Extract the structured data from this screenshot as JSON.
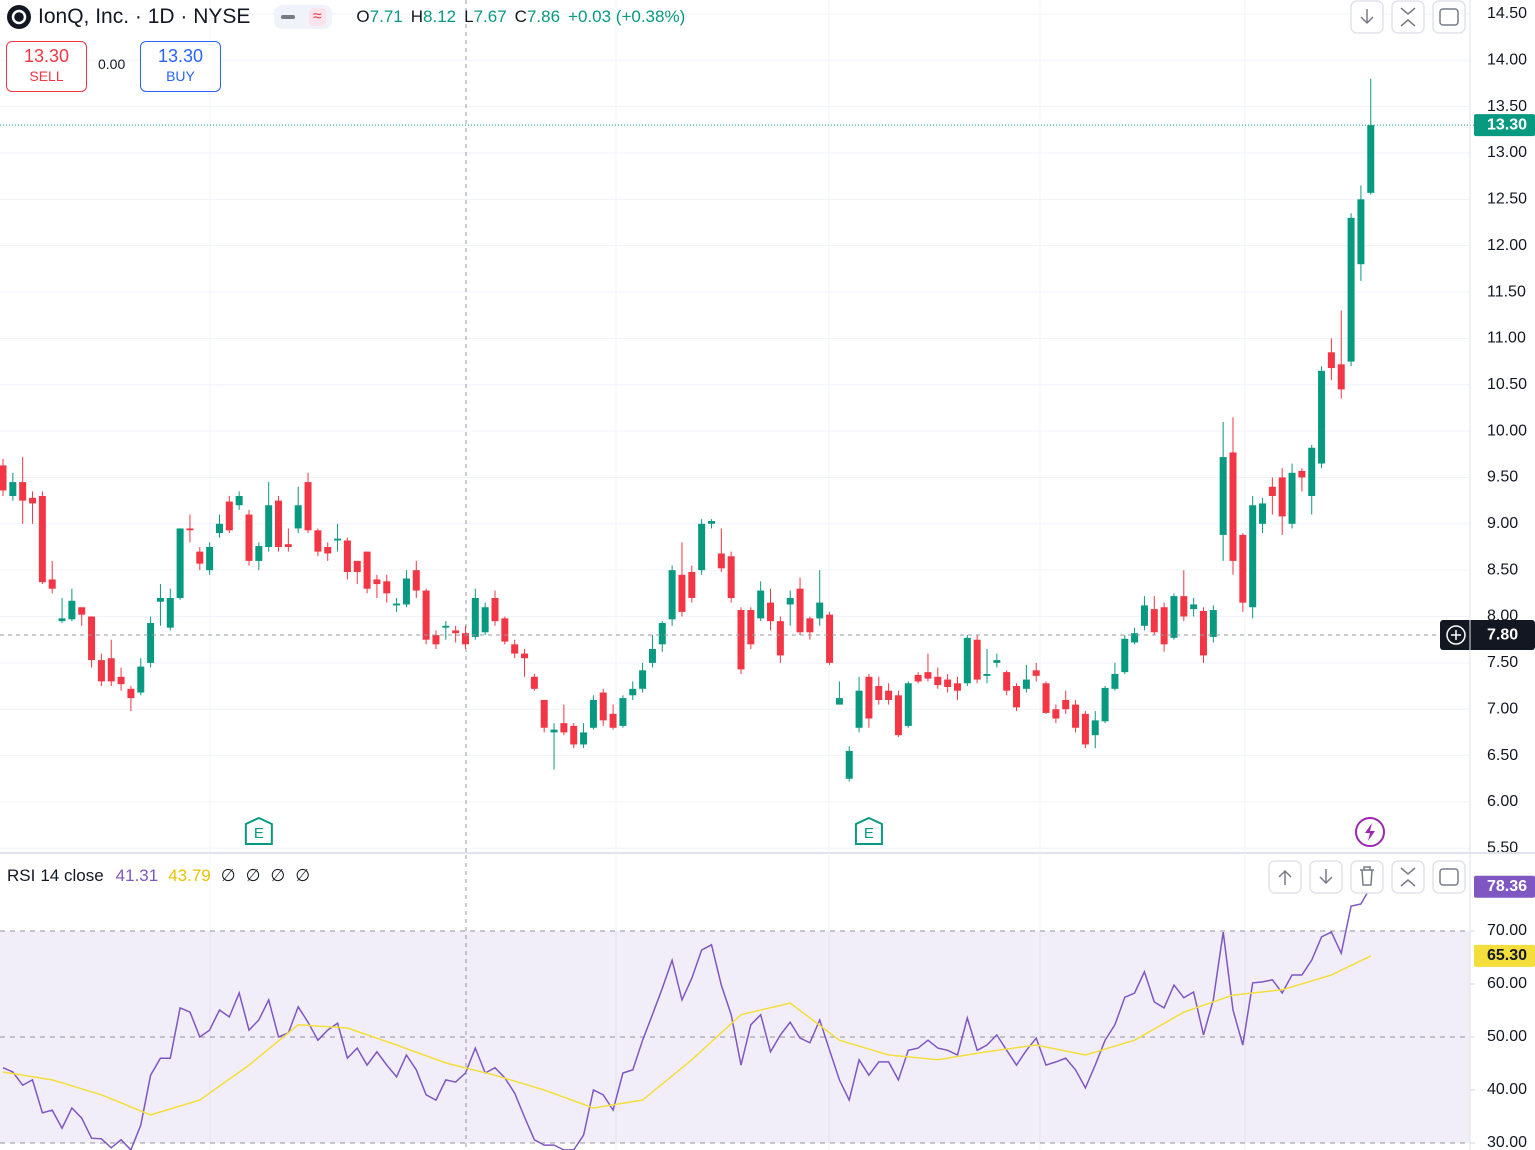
{
  "chart_data": [
    {
      "type": "candlestick",
      "title": "IonQ, Inc. · 1D · NYSE",
      "legend": [
        {
          "key": "O",
          "value": "7.71"
        },
        {
          "key": "H",
          "value": "8.12"
        },
        {
          "key": "L",
          "value": "7.67"
        },
        {
          "key": "C",
          "value": "7.86"
        }
      ],
      "change": "+0.03 (+0.38%)",
      "sell": {
        "price": "13.30",
        "label": "SELL"
      },
      "spread": "0.00",
      "buy": {
        "price": "13.30",
        "label": "BUY"
      },
      "up_color": "#089981",
      "down_color": "#f23645",
      "ylim": [
        5.46,
        14.65
      ],
      "yticks": [
        {
          "value": 14.5,
          "label": "14.50"
        },
        {
          "value": 14,
          "label": "14.00"
        },
        {
          "value": 13.5,
          "label": "13.50"
        },
        {
          "value": 13,
          "label": "13.00"
        },
        {
          "value": 12.5,
          "label": "12.50"
        },
        {
          "value": 12,
          "label": "12.00"
        },
        {
          "value": 11.5,
          "label": "11.50"
        },
        {
          "value": 11,
          "label": "11.00"
        },
        {
          "value": 10.5,
          "label": "10.50"
        },
        {
          "value": 10,
          "label": "10.00"
        },
        {
          "value": 9.5,
          "label": "9.50"
        },
        {
          "value": 9,
          "label": "9.00"
        },
        {
          "value": 8.5,
          "label": "8.50"
        },
        {
          "value": 8,
          "label": "8.00"
        },
        {
          "value": 7.5,
          "label": "7.50"
        },
        {
          "value": 7,
          "label": "7.00"
        },
        {
          "value": 6.5,
          "label": "6.50"
        },
        {
          "value": 6,
          "label": "6.00"
        },
        {
          "value": 5.5,
          "label": "5.50"
        }
      ],
      "grid": true,
      "price_line": {
        "value": 13.3,
        "label": "13.30"
      },
      "crosshair": {
        "value": 7.8,
        "label": "7.80"
      },
      "events": [
        {
          "label": "E",
          "index": 26
        },
        {
          "label": "E",
          "index": 88
        }
      ],
      "candles": [
        [
          9.63,
          9.7,
          9.3,
          9.36
        ],
        [
          9.3,
          9.55,
          9.25,
          9.45
        ],
        [
          9.45,
          9.72,
          9.0,
          9.25
        ],
        [
          9.28,
          9.35,
          9.0,
          9.22
        ],
        [
          9.3,
          9.35,
          8.35,
          8.37
        ],
        [
          8.4,
          8.6,
          8.25,
          8.3
        ],
        [
          7.95,
          8.2,
          7.93,
          7.98
        ],
        [
          7.97,
          8.3,
          7.95,
          8.17
        ],
        [
          8.1,
          8.1,
          7.9,
          8.02
        ],
        [
          8.0,
          8.0,
          7.45,
          7.53
        ],
        [
          7.53,
          7.6,
          7.25,
          7.3
        ],
        [
          7.55,
          7.75,
          7.25,
          7.3
        ],
        [
          7.35,
          7.45,
          7.2,
          7.27
        ],
        [
          7.22,
          7.25,
          6.98,
          7.12
        ],
        [
          7.18,
          7.55,
          7.15,
          7.46
        ],
        [
          7.5,
          8.0,
          7.45,
          7.93
        ],
        [
          8.16,
          8.35,
          7.9,
          8.2
        ],
        [
          7.88,
          8.3,
          7.85,
          8.2
        ],
        [
          8.2,
          8.95,
          8.18,
          8.95
        ],
        [
          8.95,
          9.1,
          8.8,
          8.93
        ],
        [
          8.7,
          8.75,
          8.5,
          8.57
        ],
        [
          8.5,
          8.8,
          8.45,
          8.75
        ],
        [
          8.9,
          9.1,
          8.85,
          9.0
        ],
        [
          9.24,
          9.3,
          8.9,
          8.93
        ],
        [
          9.2,
          9.35,
          9.15,
          9.3
        ],
        [
          9.1,
          9.15,
          8.55,
          8.6
        ],
        [
          8.6,
          8.8,
          8.5,
          8.76
        ],
        [
          8.75,
          9.45,
          8.7,
          9.2
        ],
        [
          9.25,
          9.3,
          8.7,
          8.75
        ],
        [
          8.78,
          8.95,
          8.7,
          8.75
        ],
        [
          8.95,
          9.4,
          8.9,
          9.2
        ],
        [
          9.45,
          9.55,
          8.9,
          8.93
        ],
        [
          8.93,
          8.95,
          8.65,
          8.7
        ],
        [
          8.75,
          8.8,
          8.6,
          8.68
        ],
        [
          8.82,
          9.0,
          8.7,
          8.84
        ],
        [
          8.82,
          8.85,
          8.4,
          8.48
        ],
        [
          8.6,
          8.6,
          8.35,
          8.48
        ],
        [
          8.7,
          8.7,
          8.25,
          8.3
        ],
        [
          8.4,
          8.45,
          8.2,
          8.35
        ],
        [
          8.38,
          8.45,
          8.15,
          8.25
        ],
        [
          8.12,
          8.2,
          8.05,
          8.14
        ],
        [
          8.13,
          8.5,
          8.1,
          8.41
        ],
        [
          8.5,
          8.6,
          8.2,
          8.28
        ],
        [
          8.28,
          8.3,
          7.7,
          7.75
        ],
        [
          7.8,
          7.85,
          7.65,
          7.7
        ],
        [
          7.88,
          7.95,
          7.75,
          7.9
        ],
        [
          7.85,
          7.9,
          7.72,
          7.82
        ],
        [
          7.82,
          7.9,
          7.65,
          7.7
        ],
        [
          7.78,
          8.3,
          7.75,
          8.2
        ],
        [
          7.83,
          8.15,
          7.8,
          8.1
        ],
        [
          8.2,
          8.28,
          7.9,
          7.95
        ],
        [
          7.98,
          8.0,
          7.7,
          7.73
        ],
        [
          7.7,
          7.75,
          7.55,
          7.6
        ],
        [
          7.6,
          7.65,
          7.35,
          7.55
        ],
        [
          7.35,
          7.38,
          7.2,
          7.22
        ],
        [
          7.1,
          7.1,
          6.75,
          6.8
        ],
        [
          6.75,
          6.85,
          6.35,
          6.78
        ],
        [
          6.85,
          7.05,
          6.72,
          6.75
        ],
        [
          6.82,
          6.85,
          6.58,
          6.62
        ],
        [
          6.62,
          6.85,
          6.58,
          6.75
        ],
        [
          6.8,
          7.15,
          6.78,
          7.1
        ],
        [
          7.18,
          7.22,
          6.82,
          6.88
        ],
        [
          6.95,
          7.05,
          6.78,
          6.8
        ],
        [
          6.82,
          7.15,
          6.8,
          7.12
        ],
        [
          7.15,
          7.3,
          7.1,
          7.22
        ],
        [
          7.22,
          7.5,
          7.18,
          7.42
        ],
        [
          7.5,
          7.8,
          7.45,
          7.65
        ],
        [
          7.7,
          7.95,
          7.62,
          7.93
        ],
        [
          7.97,
          8.55,
          7.9,
          8.5
        ],
        [
          8.45,
          8.8,
          8.0,
          8.05
        ],
        [
          8.48,
          8.55,
          8.15,
          8.2
        ],
        [
          8.5,
          9.05,
          8.45,
          9.0
        ],
        [
          9.0,
          9.05,
          8.95,
          9.03
        ],
        [
          8.68,
          8.95,
          8.48,
          8.52
        ],
        [
          8.65,
          8.7,
          8.15,
          8.2
        ],
        [
          8.07,
          8.1,
          7.38,
          7.43
        ],
        [
          8.07,
          8.1,
          7.65,
          7.7
        ],
        [
          7.98,
          8.38,
          7.95,
          8.28
        ],
        [
          8.15,
          8.3,
          7.85,
          7.95
        ],
        [
          7.95,
          8.0,
          7.5,
          7.58
        ],
        [
          8.13,
          8.28,
          7.9,
          8.2
        ],
        [
          8.3,
          8.42,
          7.8,
          7.83
        ],
        [
          7.98,
          8.0,
          7.75,
          7.83
        ],
        [
          7.98,
          8.5,
          7.9,
          8.15
        ],
        [
          8.02,
          8.05,
          7.48,
          7.5
        ],
        [
          7.05,
          7.3,
          7.05,
          7.12
        ],
        [
          6.25,
          6.6,
          6.22,
          6.55
        ],
        [
          6.8,
          7.35,
          6.75,
          7.2
        ],
        [
          7.35,
          7.38,
          6.8,
          6.9
        ],
        [
          7.25,
          7.35,
          7.05,
          7.1
        ],
        [
          7.2,
          7.28,
          7.05,
          7.1
        ],
        [
          7.15,
          7.2,
          6.7,
          6.72
        ],
        [
          6.82,
          7.3,
          6.8,
          7.28
        ],
        [
          7.37,
          7.4,
          7.28,
          7.3
        ],
        [
          7.4,
          7.6,
          7.3,
          7.33
        ],
        [
          7.35,
          7.45,
          7.22,
          7.26
        ],
        [
          7.32,
          7.38,
          7.18,
          7.24
        ],
        [
          7.28,
          7.35,
          7.1,
          7.2
        ],
        [
          7.28,
          7.8,
          7.25,
          7.77
        ],
        [
          7.75,
          7.8,
          7.28,
          7.32
        ],
        [
          7.36,
          7.65,
          7.28,
          7.38
        ],
        [
          7.5,
          7.6,
          7.45,
          7.53
        ],
        [
          7.4,
          7.42,
          7.15,
          7.2
        ],
        [
          7.25,
          7.28,
          6.98,
          7.02
        ],
        [
          7.22,
          7.48,
          7.18,
          7.32
        ],
        [
          7.42,
          7.5,
          7.3,
          7.36
        ],
        [
          7.28,
          7.3,
          6.95,
          6.96
        ],
        [
          7.0,
          7.05,
          6.85,
          6.9
        ],
        [
          7.1,
          7.2,
          6.95,
          7.0
        ],
        [
          7.05,
          7.1,
          6.75,
          6.8
        ],
        [
          6.95,
          6.98,
          6.58,
          6.62
        ],
        [
          6.72,
          6.98,
          6.58,
          6.88
        ],
        [
          6.87,
          7.25,
          6.85,
          7.23
        ],
        [
          7.22,
          7.5,
          7.2,
          7.38
        ],
        [
          7.4,
          7.8,
          7.38,
          7.76
        ],
        [
          7.72,
          7.88,
          7.7,
          7.82
        ],
        [
          7.9,
          8.22,
          7.85,
          8.12
        ],
        [
          8.08,
          8.22,
          7.8,
          7.83
        ],
        [
          8.1,
          8.15,
          7.62,
          7.7
        ],
        [
          7.77,
          8.25,
          7.75,
          8.22
        ],
        [
          8.22,
          8.5,
          7.95,
          8.0
        ],
        [
          8.08,
          8.2,
          8.0,
          8.13
        ],
        [
          8.06,
          8.1,
          7.5,
          7.58
        ],
        [
          7.78,
          8.12,
          7.72,
          8.07
        ],
        [
          8.88,
          10.1,
          8.6,
          9.72
        ],
        [
          9.77,
          10.15,
          8.45,
          8.6
        ],
        [
          8.88,
          8.9,
          8.05,
          8.15
        ],
        [
          8.1,
          9.3,
          7.98,
          9.2
        ],
        [
          9.0,
          9.28,
          8.9,
          9.22
        ],
        [
          9.4,
          9.5,
          9.1,
          9.3
        ],
        [
          9.5,
          9.6,
          8.88,
          9.08
        ],
        [
          9.0,
          9.65,
          8.95,
          9.55
        ],
        [
          9.57,
          9.6,
          9.35,
          9.5
        ],
        [
          9.3,
          9.85,
          9.1,
          9.82
        ],
        [
          9.65,
          10.7,
          9.6,
          10.65
        ],
        [
          10.85,
          11.0,
          10.55,
          10.68
        ],
        [
          10.72,
          11.3,
          10.35,
          10.45
        ],
        [
          10.75,
          12.35,
          10.7,
          12.3
        ],
        [
          11.8,
          12.65,
          11.62,
          12.5
        ],
        [
          12.57,
          13.8,
          12.55,
          13.3
        ]
      ]
    },
    {
      "type": "line",
      "title": "RSI",
      "params": "14 close",
      "legend_values": [
        "41.31",
        "43.79",
        "∅",
        "∅",
        "∅",
        "∅"
      ],
      "ylim": [
        28.68,
        84.34
      ],
      "yticks": [
        {
          "value": 70,
          "label": "70.00"
        },
        {
          "value": 60,
          "label": "60.00"
        },
        {
          "value": 50,
          "label": "50.00"
        },
        {
          "value": 40,
          "label": "40.00"
        },
        {
          "value": 30,
          "label": "30.00"
        }
      ],
      "band": [
        30,
        70
      ],
      "levels": [
        70,
        50,
        30
      ],
      "series": [
        {
          "color": "#7e57c2",
          "last": {
            "value": 78.36,
            "label": "78.36"
          },
          "values": [
            44.2,
            43.4,
            40.9,
            41.9,
            35.7,
            36.2,
            32.8,
            36.6,
            34.7,
            30.9,
            30.8,
            29.1,
            30.6,
            28.7,
            33.4,
            42.8,
            46.0,
            46.0,
            55.5,
            54.7,
            50.0,
            51.3,
            55.1,
            53.8,
            58.3,
            51.3,
            53.2,
            57.0,
            50.0,
            50.8,
            55.7,
            52.8,
            49.4,
            51.3,
            52.6,
            46.0,
            47.9,
            44.7,
            47.2,
            44.7,
            42.5,
            46.6,
            43.8,
            39.1,
            38.1,
            41.9,
            41.5,
            43.2,
            47.9,
            43.2,
            44.2,
            42.3,
            39.4,
            34.9,
            30.6,
            29.6,
            29.6,
            28.7,
            28.7,
            31.5,
            40.0,
            39.1,
            36.2,
            43.2,
            43.8,
            49.4,
            54.2,
            59.2,
            64.5,
            57.0,
            61.1,
            66.4,
            67.4,
            59.8,
            54.2,
            44.7,
            52.3,
            54.2,
            47.2,
            50.4,
            52.8,
            49.8,
            48.9,
            53.2,
            47.5,
            41.9,
            38.1,
            45.7,
            42.8,
            45.3,
            45.3,
            41.9,
            47.5,
            47.9,
            49.4,
            47.9,
            47.5,
            46.6,
            53.6,
            47.5,
            48.5,
            50.4,
            47.5,
            44.7,
            47.5,
            49.8,
            44.7,
            45.3,
            46.0,
            43.8,
            40.4,
            44.7,
            49.4,
            52.3,
            57.5,
            58.3,
            62.3,
            56.6,
            55.5,
            59.8,
            57.4,
            58.5,
            50.4,
            57.0,
            69.8,
            55.1,
            48.5,
            60.2,
            60.4,
            60.8,
            58.3,
            61.7,
            61.7,
            64.5,
            68.9,
            69.8,
            65.8,
            74.7,
            75.1,
            78.36
          ]
        },
        {
          "color": "#f4de3b",
          "last": {
            "value": 65.3,
            "label": "65.30"
          },
          "x": [
            0,
            5,
            10,
            15,
            20,
            25,
            30,
            35,
            40,
            45,
            50,
            55,
            60,
            65,
            70,
            75,
            80,
            85,
            90,
            95,
            100,
            105,
            110,
            115,
            120,
            125,
            130,
            135,
            139
          ],
          "values": [
            43.4,
            41.9,
            39.1,
            35.3,
            38.1,
            44.7,
            52.3,
            51.7,
            48.5,
            45.1,
            42.8,
            40.0,
            36.6,
            38.1,
            45.7,
            54.2,
            56.4,
            49.4,
            46.6,
            45.7,
            47.2,
            48.5,
            46.6,
            49.4,
            54.7,
            57.9,
            58.9,
            61.7,
            65.3
          ]
        }
      ]
    }
  ]
}
